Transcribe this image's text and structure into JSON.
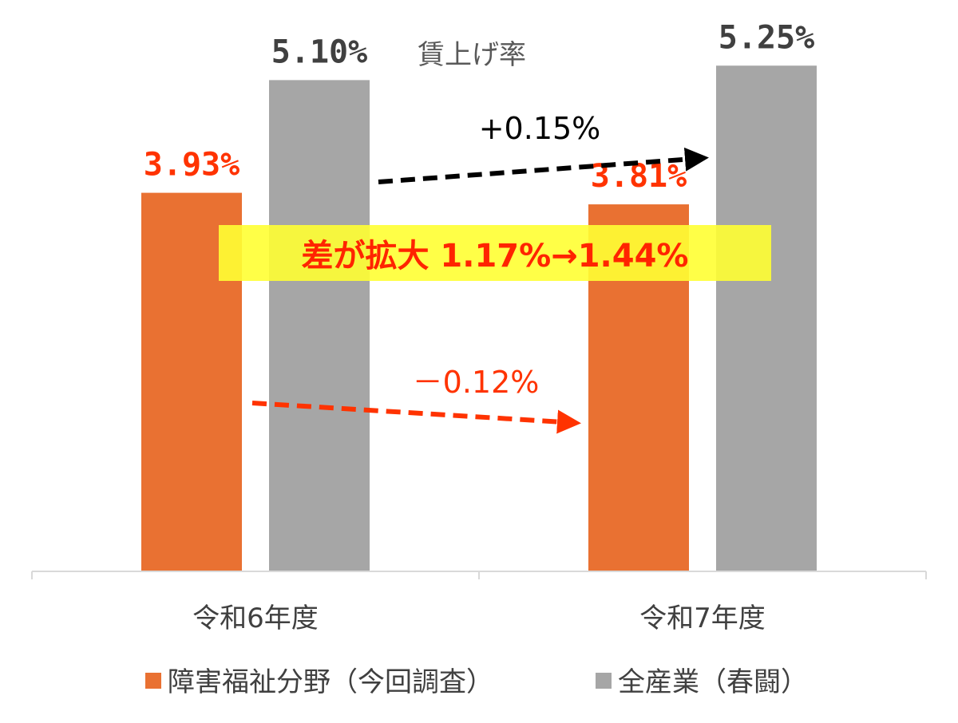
{
  "chart_data": {
    "type": "bar",
    "title": "賃上げ率",
    "categories": [
      "令和6年度",
      "令和7年度"
    ],
    "series": [
      {
        "name": "障害福祉分野（今回調査）",
        "values": [
          3.93,
          3.81
        ],
        "labels": [
          "3.93%",
          "3.81%"
        ],
        "color": "#e97132"
      },
      {
        "name": "全産業（春闘）",
        "values": [
          5.1,
          5.25
        ],
        "labels": [
          "5.10%",
          "5.25%"
        ],
        "color": "#a6a6a6"
      }
    ],
    "ylim": [
      0,
      5.6
    ],
    "grid": false,
    "legend_position": "bottom",
    "annotations": {
      "delta_all": {
        "text": "+0.15%",
        "color": "#000000"
      },
      "delta_welfare": {
        "text": "－0.12%",
        "color": "#ff3300"
      },
      "gap_note": {
        "text": "差が拡大 1.17%→1.44%",
        "color": "#ff2400",
        "background": "#ffff33"
      }
    }
  }
}
